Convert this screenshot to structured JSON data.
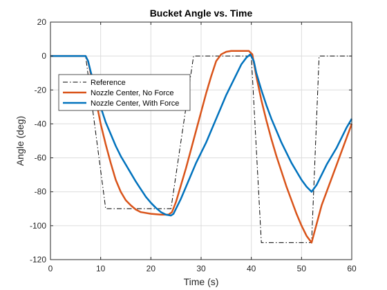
{
  "chart_data": {
    "type": "line",
    "title": "Bucket Angle vs. Time",
    "xlabel": "Time (s)",
    "ylabel": "Angle (deg)",
    "xlim": [
      0,
      60
    ],
    "ylim": [
      -120,
      20
    ],
    "xticks": [
      0,
      10,
      20,
      30,
      40,
      50,
      60
    ],
    "yticks": [
      20,
      0,
      -20,
      -40,
      -60,
      -80,
      -100,
      -120
    ],
    "grid": true,
    "legend_position": "upper-left",
    "series": [
      {
        "name": "Reference",
        "color": "#000000",
        "style": "dashdot",
        "width": 1,
        "points": [
          [
            0,
            0
          ],
          [
            7,
            0
          ],
          [
            11,
            -90
          ],
          [
            24,
            -90
          ],
          [
            28.5,
            0
          ],
          [
            40,
            0
          ],
          [
            42,
            -110
          ],
          [
            52,
            -110
          ],
          [
            53.5,
            0
          ],
          [
            60,
            0
          ]
        ]
      },
      {
        "name": "Nozzle Center, No Force",
        "color": "#D95319",
        "style": "solid",
        "width": 2.5,
        "points": [
          [
            0,
            0
          ],
          [
            7,
            0
          ],
          [
            7.5,
            -3
          ],
          [
            8,
            -10
          ],
          [
            9,
            -25
          ],
          [
            10,
            -40
          ],
          [
            11,
            -52
          ],
          [
            12,
            -63
          ],
          [
            13,
            -73
          ],
          [
            14,
            -80
          ],
          [
            15,
            -85
          ],
          [
            16,
            -88
          ],
          [
            17,
            -90.5
          ],
          [
            18,
            -92
          ],
          [
            20,
            -93
          ],
          [
            22,
            -93.5
          ],
          [
            23.5,
            -93.5
          ],
          [
            24.2,
            -92
          ],
          [
            25,
            -86
          ],
          [
            26,
            -76
          ],
          [
            27,
            -66
          ],
          [
            28,
            -55
          ],
          [
            29,
            -44
          ],
          [
            30,
            -33
          ],
          [
            31,
            -22
          ],
          [
            32,
            -12
          ],
          [
            33,
            -3
          ],
          [
            34,
            1
          ],
          [
            35,
            2.5
          ],
          [
            36,
            3
          ],
          [
            38,
            3
          ],
          [
            39.5,
            3
          ],
          [
            40.2,
            1
          ],
          [
            41,
            -12
          ],
          [
            42,
            -26
          ],
          [
            43,
            -38
          ],
          [
            44,
            -49
          ],
          [
            45,
            -59
          ],
          [
            46,
            -68
          ],
          [
            47,
            -77
          ],
          [
            48,
            -85
          ],
          [
            49,
            -93
          ],
          [
            50,
            -100
          ],
          [
            51,
            -106
          ],
          [
            52,
            -110
          ],
          [
            53,
            -99
          ],
          [
            54,
            -88
          ],
          [
            55,
            -80
          ],
          [
            56,
            -72
          ],
          [
            57,
            -64
          ],
          [
            58,
            -56
          ],
          [
            59,
            -48
          ],
          [
            60,
            -40
          ]
        ]
      },
      {
        "name": "Nozzle Center, With Force",
        "color": "#0072BD",
        "style": "solid",
        "width": 2.5,
        "points": [
          [
            0,
            0
          ],
          [
            7,
            0
          ],
          [
            7.5,
            -3
          ],
          [
            8,
            -9
          ],
          [
            9,
            -20
          ],
          [
            10,
            -30
          ],
          [
            11,
            -39
          ],
          [
            12,
            -46
          ],
          [
            13,
            -53
          ],
          [
            14,
            -59
          ],
          [
            15,
            -64
          ],
          [
            16,
            -69
          ],
          [
            17,
            -74
          ],
          [
            18,
            -78.5
          ],
          [
            19,
            -83
          ],
          [
            20,
            -86.5
          ],
          [
            21,
            -89.5
          ],
          [
            22,
            -92
          ],
          [
            23,
            -93.5
          ],
          [
            24,
            -94
          ],
          [
            24.5,
            -93
          ],
          [
            25,
            -90
          ],
          [
            26,
            -84
          ],
          [
            27,
            -77
          ],
          [
            28,
            -70
          ],
          [
            29,
            -63
          ],
          [
            30,
            -57
          ],
          [
            31,
            -51
          ],
          [
            32,
            -44
          ],
          [
            33,
            -37
          ],
          [
            34,
            -30
          ],
          [
            35,
            -23
          ],
          [
            36,
            -17
          ],
          [
            37,
            -11
          ],
          [
            38,
            -5
          ],
          [
            39,
            -1
          ],
          [
            39.8,
            1
          ],
          [
            40.5,
            -3
          ],
          [
            41,
            -10
          ],
          [
            42,
            -20
          ],
          [
            43,
            -29
          ],
          [
            44,
            -37
          ],
          [
            45,
            -44
          ],
          [
            46,
            -51
          ],
          [
            47,
            -57
          ],
          [
            48,
            -63
          ],
          [
            49,
            -68
          ],
          [
            50,
            -73
          ],
          [
            51,
            -77
          ],
          [
            52,
            -80
          ],
          [
            53,
            -76
          ],
          [
            54,
            -70
          ],
          [
            55,
            -64
          ],
          [
            56,
            -59
          ],
          [
            57,
            -54
          ],
          [
            58,
            -48
          ],
          [
            59,
            -42
          ],
          [
            60,
            -37
          ]
        ]
      }
    ]
  }
}
